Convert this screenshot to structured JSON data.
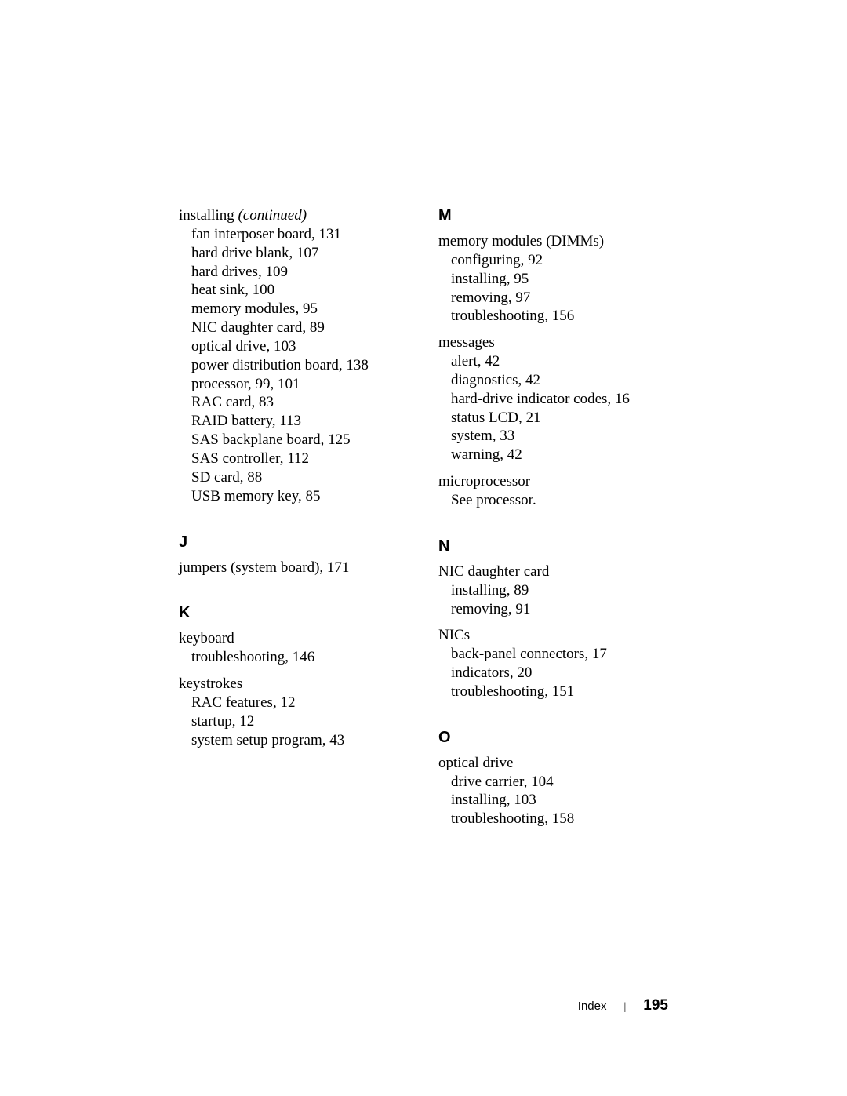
{
  "footer": {
    "label": "Index",
    "separator": "|",
    "page_number": "195"
  },
  "left_column": {
    "installing": {
      "head": "installing",
      "qualifier": "(continued)",
      "items": [
        "fan interposer board, 131",
        "hard drive blank, 107",
        "hard drives, 109",
        "heat sink, 100",
        "memory modules, 95",
        "NIC daughter card, 89",
        "optical drive, 103",
        "power distribution board, 138",
        "processor, 99, 101",
        "RAC card, 83",
        "RAID battery, 113",
        "SAS backplane board, 125",
        "SAS controller, 112",
        "SD card, 88",
        "USB memory key, 85"
      ]
    },
    "j": {
      "letter": "J",
      "jumpers": "jumpers (system board), 171"
    },
    "k": {
      "letter": "K",
      "keyboard": {
        "head": "keyboard",
        "items": [
          "troubleshooting, 146"
        ]
      },
      "keystrokes": {
        "head": "keystrokes",
        "items": [
          "RAC features, 12",
          "startup, 12",
          "system setup program, 43"
        ]
      }
    }
  },
  "right_column": {
    "m": {
      "letter": "M",
      "memory_modules": {
        "head": "memory modules (DIMMs)",
        "items": [
          "configuring, 92",
          "installing, 95",
          "removing, 97",
          "troubleshooting, 156"
        ]
      },
      "messages": {
        "head": "messages",
        "items": [
          "alert, 42",
          "diagnostics, 42",
          "hard-drive indicator codes, 16",
          "status LCD, 21",
          "system, 33",
          "warning, 42"
        ]
      },
      "microprocessor": {
        "head": "microprocessor",
        "see_prefix": "See",
        "see_rest": " processor."
      }
    },
    "n": {
      "letter": "N",
      "nic_daughter": {
        "head": "NIC daughter card",
        "items": [
          "installing, 89",
          "removing, 91"
        ]
      },
      "nics": {
        "head": "NICs",
        "items": [
          "back-panel connectors, 17",
          "indicators, 20",
          "troubleshooting, 151"
        ]
      }
    },
    "o": {
      "letter": "O",
      "optical_drive": {
        "head": "optical drive",
        "items": [
          "drive carrier, 104",
          "installing, 103",
          "troubleshooting, 158"
        ]
      }
    }
  }
}
